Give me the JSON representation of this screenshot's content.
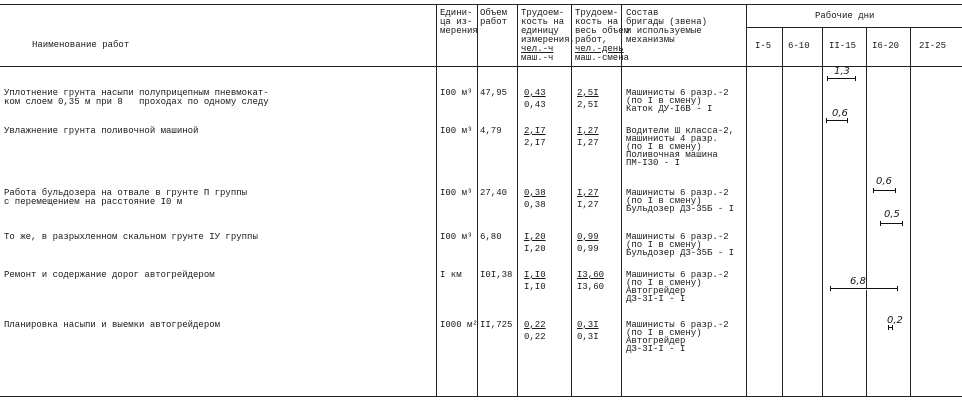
{
  "header": {
    "name": "Наименование работ",
    "unit": "Едини-\nца из-\nмерения",
    "volume": "Объем\nработ",
    "labor_unit": "Трудоем-\nкость на\nединицу\nизмерения,",
    "labor_unit_num": "чел.-ч",
    "labor_unit_den": "маш.-ч",
    "labor_total": "Трудоем-\nкость на\nвесь объем\nработ,",
    "labor_total_num": "чел.-день",
    "labor_total_den": "маш.-смена",
    "crew": "Состав\nбригады (звена)\nи используемые\nмеханизмы",
    "days": "Рабочие дни",
    "day_ranges": [
      "I-5",
      "6-10",
      "II-15",
      "I6-20",
      "2I-25"
    ]
  },
  "rows": [
    {
      "name": "Уплотнение грунта насыпи полуприцепным пневмокат-\nком слоем 0,35 м при 8   проходах по одному следу",
      "unit": "I00 м³",
      "volume": "47,95",
      "lu_num": "0,43",
      "lu_den": "0,43",
      "lt_num": "2,5I",
      "lt_den": "2,5I",
      "crew": "Машинисты 6 разр.-2\n(по I в смену)\nКаток ДУ-I6В - I",
      "duration": "1,3"
    },
    {
      "name": "Увлажнение грунта поливочной машиной",
      "unit": "I00 м³",
      "volume": "4,79",
      "lu_num": "2,I7",
      "lu_den": "2,I7",
      "lt_num": "I,27",
      "lt_den": "I,27",
      "crew": "Водители Ш класса-2,\nмашинисты 4 разр.\n(по I в смену)\nПоливочная машина\nПМ-I30 - I",
      "duration": "0,6"
    },
    {
      "name": "Работа бульдозера на отвале в грунте П группы\nс перемещением на расстояние I0 м",
      "unit": "I00 м³",
      "volume": "27,40",
      "lu_num": "0,38",
      "lu_den": "0,38",
      "lt_num": "I,27",
      "lt_den": "I,27",
      "crew": "Машинисты 6 разр.-2\n(по I в смену)\nБульдозер ДЗ-35Б - I",
      "duration": "0,6"
    },
    {
      "name": "То же, в разрыхленном скальном грунте IУ группы",
      "unit": "I00 м³",
      "volume": "6,80",
      "lu_num": "I,20",
      "lu_den": "I,20",
      "lt_num": "0,99",
      "lt_den": "0,99",
      "crew": "Машинисты 6 разр.-2\n(по I в смену)\nБульдозер ДЗ-35Б - I",
      "duration": "0,5"
    },
    {
      "name": "Ремонт и содержание дорог автогрейдером",
      "unit": "I км",
      "volume": "I0I,38",
      "lu_num": "I,I0",
      "lu_den": "I,I0",
      "lt_num": "I3,60",
      "lt_den": "I3,60",
      "crew": "Машинисты 6 разр.-2\n(по I в смену)\nАвтогрейдер\nДЗ-3I-I - I",
      "duration": "6,8"
    },
    {
      "name": "Планировка насыпи и выемки автогрейдером",
      "unit": "I000 м²",
      "volume": "II,725",
      "lu_num": "0,22",
      "lu_den": "0,22",
      "lt_num": "0,3I",
      "lt_den": "0,3I",
      "crew": "Машинисты 6 разр.-2\n(по I в смену)\nАвтогрейдер\nДЗ-3I-I - I",
      "duration": "0,2"
    }
  ]
}
